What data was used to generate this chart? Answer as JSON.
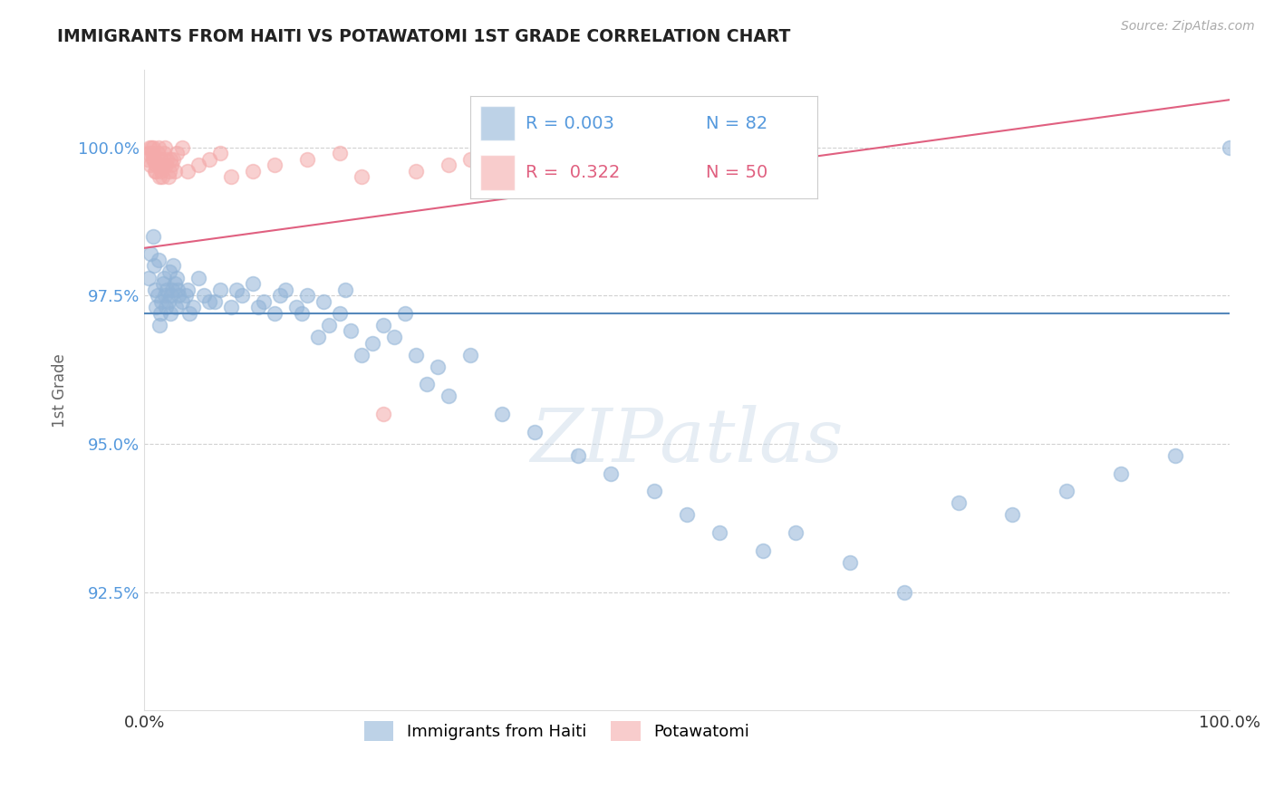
{
  "title": "IMMIGRANTS FROM HAITI VS POTAWATOMI 1ST GRADE CORRELATION CHART",
  "source": "Source: ZipAtlas.com",
  "ylabel": "1st Grade",
  "watermark": "ZIPatlas",
  "xlim": [
    0,
    100
  ],
  "ylim": [
    90.5,
    101.3
  ],
  "yticks": [
    92.5,
    95.0,
    97.5,
    100.0
  ],
  "ytick_labels": [
    "92.5%",
    "95.0%",
    "97.5%",
    "100.0%"
  ],
  "xticks": [
    0,
    100
  ],
  "xtick_labels": [
    "0.0%",
    "100.0%"
  ],
  "legend_label1": "Immigrants from Haiti",
  "legend_label2": "Potawatomi",
  "blue_color": "#92B4D7",
  "pink_color": "#F4AAAA",
  "trendline_blue_color": "#5588BB",
  "trendline_pink_color": "#E06080",
  "blue_trend_y0": 97.2,
  "blue_trend_y1": 97.2,
  "pink_trend_y0": 98.3,
  "pink_trend_y1": 100.8,
  "blue_x": [
    0.4,
    0.6,
    0.8,
    0.9,
    1.0,
    1.1,
    1.2,
    1.3,
    1.4,
    1.5,
    1.6,
    1.7,
    1.8,
    1.9,
    2.0,
    2.1,
    2.2,
    2.3,
    2.4,
    2.5,
    2.6,
    2.7,
    2.8,
    3.0,
    3.2,
    3.5,
    4.0,
    4.5,
    5.0,
    5.5,
    6.0,
    7.0,
    8.0,
    9.0,
    10.0,
    11.0,
    12.0,
    13.0,
    14.0,
    15.0,
    16.0,
    17.0,
    18.0,
    19.0,
    20.0,
    21.0,
    22.0,
    23.0,
    24.0,
    25.0,
    26.0,
    27.0,
    28.0,
    30.0,
    33.0,
    36.0,
    40.0,
    43.0,
    47.0,
    50.0,
    53.0,
    57.0,
    60.0,
    65.0,
    70.0,
    75.0,
    80.0,
    85.0,
    90.0,
    95.0,
    100.0,
    2.9,
    3.1,
    3.8,
    4.2,
    6.5,
    8.5,
    10.5,
    12.5,
    14.5,
    16.5,
    18.5
  ],
  "blue_y": [
    97.8,
    98.2,
    98.5,
    98.0,
    97.6,
    97.3,
    97.5,
    98.1,
    97.0,
    97.2,
    97.4,
    97.7,
    97.8,
    97.5,
    97.3,
    97.6,
    97.4,
    97.9,
    97.2,
    97.5,
    97.6,
    98.0,
    97.7,
    97.8,
    97.5,
    97.4,
    97.6,
    97.3,
    97.8,
    97.5,
    97.4,
    97.6,
    97.3,
    97.5,
    97.7,
    97.4,
    97.2,
    97.6,
    97.3,
    97.5,
    96.8,
    97.0,
    97.2,
    96.9,
    96.5,
    96.7,
    97.0,
    96.8,
    97.2,
    96.5,
    96.0,
    96.3,
    95.8,
    96.5,
    95.5,
    95.2,
    94.8,
    94.5,
    94.2,
    93.8,
    93.5,
    93.2,
    93.5,
    93.0,
    92.5,
    94.0,
    93.8,
    94.2,
    94.5,
    94.8,
    100.0,
    97.3,
    97.6,
    97.5,
    97.2,
    97.4,
    97.6,
    97.3,
    97.5,
    97.2,
    97.4,
    97.6
  ],
  "pink_x": [
    0.3,
    0.5,
    0.6,
    0.7,
    0.8,
    0.9,
    1.0,
    1.1,
    1.2,
    1.3,
    1.4,
    1.5,
    1.6,
    1.7,
    1.8,
    1.9,
    2.0,
    2.1,
    2.2,
    2.3,
    2.5,
    2.7,
    3.0,
    3.5,
    4.0,
    5.0,
    6.0,
    7.0,
    8.0,
    10.0,
    12.0,
    15.0,
    18.0,
    20.0,
    22.0,
    25.0,
    28.0,
    30.0,
    35.0,
    40.0,
    45.0,
    50.0,
    0.4,
    0.65,
    0.85,
    1.05,
    1.35,
    1.65,
    2.4,
    2.8
  ],
  "pink_y": [
    99.8,
    100.0,
    99.7,
    99.9,
    100.0,
    99.8,
    99.6,
    99.7,
    99.9,
    100.0,
    99.5,
    99.8,
    99.6,
    99.7,
    99.9,
    100.0,
    99.7,
    99.8,
    99.5,
    99.6,
    99.7,
    99.8,
    99.9,
    100.0,
    99.6,
    99.7,
    99.8,
    99.9,
    99.5,
    99.6,
    99.7,
    99.8,
    99.9,
    99.5,
    95.5,
    99.6,
    99.7,
    99.8,
    99.5,
    99.6,
    99.7,
    99.8,
    99.9,
    100.0,
    99.8,
    99.6,
    99.7,
    99.5,
    99.8,
    99.6
  ]
}
